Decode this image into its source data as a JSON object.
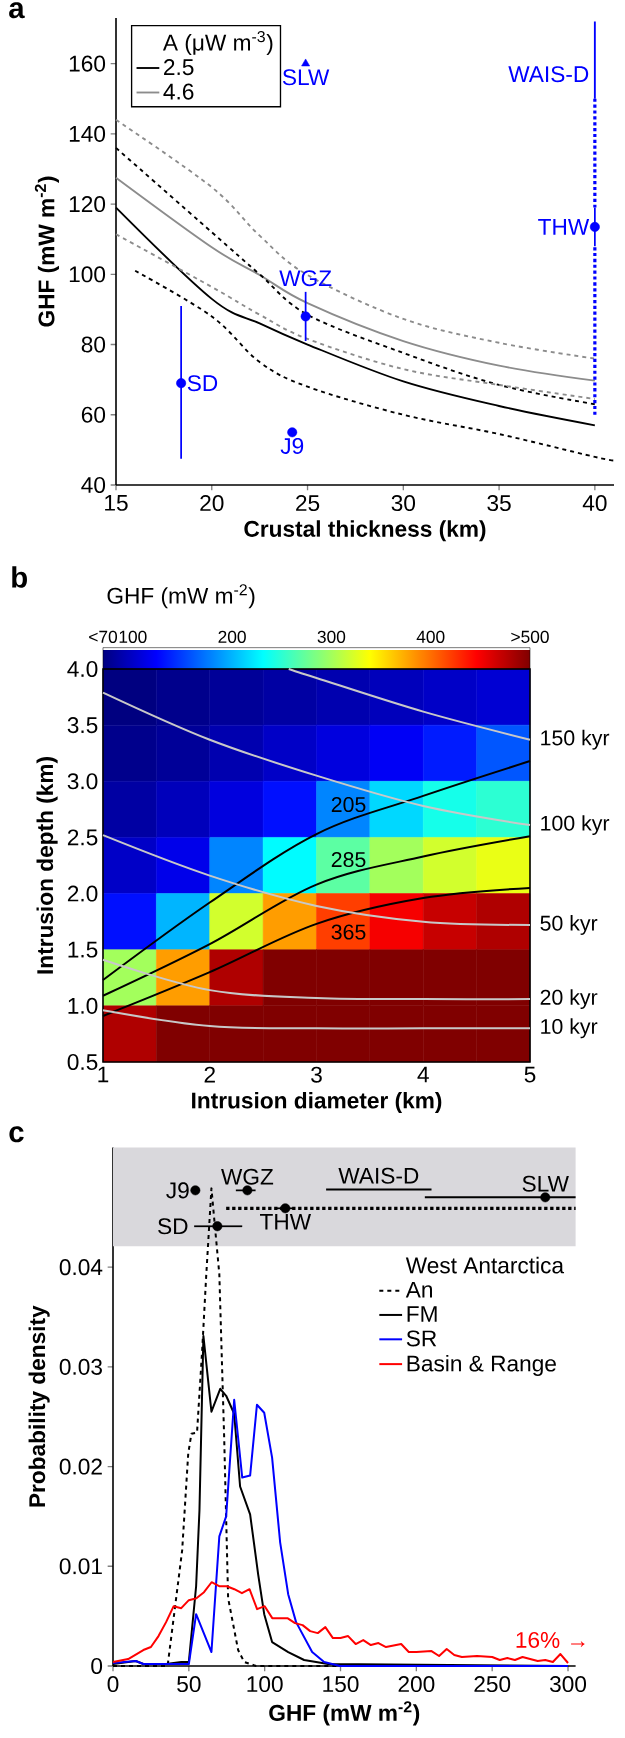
{
  "chart_data": [
    {
      "type": "line",
      "xlabel": "Crustal thickness (km)",
      "ylabel": "GHF (mW m$^{-2}$)",
      "legend_title": "A (μW m$^{-3}$)",
      "legend": "top left",
      "xlim": [
        15,
        41
      ],
      "ylim": [
        40,
        173
      ],
      "xticks": [
        15,
        20,
        25,
        30,
        35,
        40
      ],
      "yticks": [
        40,
        60,
        80,
        100,
        120,
        140,
        160
      ],
      "x": [
        15,
        20,
        22.5,
        25,
        30,
        35,
        40
      ],
      "series": [
        {
          "name": "2.5",
          "color": "#000000",
          "values": [
            119,
            93,
            86,
            80,
            69.5,
            62.5,
            57
          ]
        },
        {
          "name": "4.6",
          "color": "#8c8c8c",
          "values": [
            127.5,
            107.7,
            99.8,
            91.8,
            81,
            74,
            69.7
          ]
        },
        {
          "color": "#000000",
          "line_style": "dashed",
          "values": [
            136,
            112,
            100,
            88.5,
            77.6,
            68.5,
            63
          ]
        },
        {
          "color": "#000000",
          "line_style": "dashed",
          "x": [
            16,
            20,
            22.5,
            25,
            30,
            35,
            40,
            41
          ],
          "values": [
            101,
            88,
            75,
            68,
            60,
            54.5,
            48,
            47
          ]
        },
        {
          "color": "#8c8c8c",
          "line_style": "dashed",
          "values": [
            144,
            124.8,
            111,
            99.8,
            87.3,
            80.5,
            76
          ]
        },
        {
          "color": "#8c8c8c",
          "line_style": "dashed",
          "values": [
            111.4,
            96.4,
            88.5,
            81.6,
            73,
            68.5,
            64.5
          ]
        },
        {
          "color": "#0000ff",
          "line_style": "dotted",
          "x": [
            40,
            40
          ],
          "values": [
            60,
            108
          ]
        },
        {
          "color": "#0000ff",
          "line_style": "dotted",
          "x": [
            40,
            40
          ],
          "values": [
            119,
            150
          ]
        },
        {
          "color": "#0000ff",
          "x": [
            40,
            40
          ],
          "values": [
            150,
            172
          ]
        },
        {
          "type": "scatter",
          "color": "#0000ff",
          "marker": "triangle",
          "x": [
            24.9
          ],
          "values": [
            160
          ]
        },
        {
          "type": "scatter",
          "color": "#0000ff",
          "marker": "circle",
          "x": [
            18.4,
            24.2,
            24.9,
            40
          ],
          "values": [
            69,
            55,
            88,
            113.5
          ],
          "errors": [
            [
              47.5,
              91
            ],
            null,
            [
              81,
              95
            ],
            [
              108,
              119
            ]
          ]
        }
      ],
      "annotations": [
        "a",
        {
          "text": "SLW",
          "x": 24.9,
          "y": 160
        },
        {
          "text": "WAIS-D",
          "x": 40,
          "y": 157
        },
        {
          "text": "THW",
          "x": 40,
          "y": 113.5
        },
        {
          "text": "WGZ",
          "x": 24.9,
          "y": 95
        },
        {
          "text": "SD",
          "x": 18.4,
          "y": 69
        },
        {
          "text": "J9",
          "x": 24.2,
          "y": 55
        }
      ]
    },
    {
      "type": "heatmap",
      "clabel": "GHF (mW m$^{-2}$)",
      "clim": [
        70,
        500
      ],
      "cticks": [
        {
          "value": 70,
          "label": "<70"
        },
        100,
        200,
        300,
        400,
        {
          "value": 500,
          "label": ">500"
        }
      ],
      "categories": [
        null,
        null,
        null,
        null,
        null,
        null,
        null,
        null
      ],
      "y_categories": [
        null,
        null,
        null,
        null,
        null,
        null,
        null
      ],
      "cells": [
        [
          70,
          75,
          80,
          85,
          90,
          95,
          100,
          105
        ],
        [
          75,
          80,
          90,
          100,
          110,
          120,
          135,
          160
        ],
        [
          85,
          95,
          110,
          130,
          180,
          215,
          240,
          250
        ],
        [
          100,
          115,
          180,
          230,
          270,
          300,
          320,
          330
        ],
        [
          130,
          200,
          320,
          380,
          420,
          450,
          470,
          480
        ],
        [
          300,
          380,
          480,
          500,
          500,
          500,
          500,
          500
        ],
        [
          480,
          500,
          500,
          500,
          500,
          500,
          500,
          500
        ]
      ],
      "annotations": [
        "b"
      ]
    },
    {
      "type": "line",
      "xlabel": "Intrusion diameter (km)",
      "ylabel": "Intrusion depth (km)",
      "xlim": [
        1,
        5
      ],
      "ylim": [
        0.5,
        4
      ],
      "xticks": [
        1,
        2,
        3,
        4,
        5
      ],
      "yticks": [
        0.5,
        {
          "value": 1,
          "label": "1.0"
        },
        1.5,
        {
          "value": 2,
          "label": "2.0"
        },
        2.5,
        {
          "value": 3,
          "label": "3.0"
        },
        3.5,
        {
          "value": 4,
          "label": "4.0"
        }
      ],
      "series": [
        {
          "color": "#000000",
          "x": [
            1,
            2,
            3,
            4,
            5
          ],
          "values": [
            1.23,
            1.92,
            2.53,
            2.87,
            3.18
          ]
        },
        {
          "color": "#000000",
          "x": [
            1,
            2,
            3,
            4,
            5
          ],
          "values": [
            1.09,
            1.55,
            2.08,
            2.33,
            2.51
          ]
        },
        {
          "color": "#000000",
          "x": [
            1,
            2,
            3,
            4,
            5
          ],
          "values": [
            0.91,
            1.3,
            1.73,
            1.96,
            2.05
          ]
        },
        {
          "color": "#c8c8c8",
          "x": [
            1,
            2,
            3,
            4,
            5
          ],
          "values": [
            0.96,
            0.82,
            0.8,
            0.8,
            0.8
          ]
        },
        {
          "color": "#c8c8c8",
          "x": [
            1,
            2,
            3,
            4,
            5
          ],
          "values": [
            1.41,
            1.14,
            1.07,
            1.06,
            1.06
          ]
        },
        {
          "color": "#c8c8c8",
          "x": [
            1,
            2,
            3,
            4,
            5
          ],
          "values": [
            2.52,
            2.16,
            1.89,
            1.75,
            1.72
          ]
        },
        {
          "color": "#c8c8c8",
          "x": [
            1,
            2,
            3,
            4,
            5
          ],
          "values": [
            3.79,
            3.37,
            3.05,
            2.78,
            2.61
          ]
        },
        {
          "color": "#c8c8c8",
          "x": [
            2.74,
            3,
            4,
            5
          ],
          "values": [
            4.0,
            3.92,
            3.62,
            3.37
          ]
        }
      ],
      "annotations": [
        {
          "text": "205",
          "x": 3.3,
          "y": 2.64
        },
        {
          "text": "285",
          "x": 3.3,
          "y": 2.15
        },
        {
          "text": "365",
          "x": 3.3,
          "y": 1.81
        },
        {
          "text": "150 kyr",
          "x": 5,
          "y": 3.37
        },
        {
          "text": "100 kyr",
          "x": 5,
          "y": 2.61
        },
        {
          "text": "50 kyr",
          "x": 5,
          "y": 1.72
        },
        {
          "text": "20 kyr",
          "x": 5,
          "y": 1.06
        },
        {
          "text": "10 kyr",
          "x": 5,
          "y": 0.8
        }
      ]
    },
    {
      "type": "line",
      "xlabel": "GHF (mW m$^{-2}$)",
      "ylabel": "Probability density",
      "legend_title": "West Antarctica",
      "legend": "top right",
      "xlim": [
        0,
        305
      ],
      "ylim": [
        0,
        0.052
      ],
      "xticks": [
        0,
        50,
        100,
        150,
        200,
        250,
        300
      ],
      "yticks": [
        0,
        0.01,
        0.02,
        0.03,
        0.04
      ],
      "bands": [
        {
          "axis": "y",
          "from": 0.0421,
          "to": 0.052,
          "color": "#d9d8dc"
        }
      ],
      "series": [
        {
          "name": "An",
          "color": "#000000",
          "line_style": "dashed",
          "x": [
            0,
            36,
            45.6,
            49.6,
            51.7,
            55.4,
            58.8,
            61.4,
            64.9,
            66.7,
            70.1,
            73.3,
            75.9,
            82.5,
            86.5,
            94.4,
            300
          ],
          "values": [
            0,
            0,
            0.0116,
            0.0213,
            0.0233,
            0.0234,
            0.0317,
            0.039,
            0.0479,
            0.0449,
            0.0393,
            0.0229,
            0.0068,
            0.0016,
            0.0004,
            0,
            0
          ]
        },
        {
          "name": "FM",
          "color": "#000000",
          "x": [
            0,
            15,
            20,
            35,
            45,
            50,
            54.8,
            57,
            59.6,
            64.9,
            70.7,
            74.6,
            79.9,
            83.8,
            90.4,
            95.7,
            99.7,
            104.9,
            115.5,
            126,
            141.8,
            300
          ],
          "values": [
            0.0002,
            0.0005,
            0.0002,
            0.0002,
            0.0004,
            0.0004,
            0.008,
            0.0156,
            0.0331,
            0.0255,
            0.0278,
            0.0271,
            0.0253,
            0.018,
            0.0152,
            0.0092,
            0.0052,
            0.0024,
            0.0014,
            0.0006,
            0.0002,
            0
          ]
        },
        {
          "name": "SR",
          "color": "#0000ff",
          "x": [
            0,
            15,
            20,
            50,
            54.8,
            64.9,
            70.1,
            74.6,
            79.9,
            85.2,
            90.4,
            94.9,
            99.7,
            104.9,
            110.2,
            115.5,
            120.7,
            131.3,
            139.2,
            149.7,
            300
          ],
          "values": [
            0.0003,
            0.0005,
            0.0002,
            0.0002,
            0.0052,
            0.0014,
            0.013,
            0.015,
            0.0267,
            0.0189,
            0.0191,
            0.0262,
            0.0254,
            0.0209,
            0.0124,
            0.0072,
            0.0044,
            0.0014,
            0.0004,
            0,
            0
          ]
        },
        {
          "name": "Basin & Range",
          "color": "#ff0000",
          "x": [
            0,
            10,
            20,
            25,
            30,
            35,
            40,
            45,
            50,
            55,
            60,
            65,
            70,
            75,
            80,
            85,
            90,
            95,
            100,
            105,
            110,
            115,
            120,
            125,
            130,
            135,
            140,
            145,
            150,
            155,
            160,
            165,
            170,
            175,
            180,
            190,
            195,
            200,
            210,
            215,
            220,
            225,
            230,
            240,
            250,
            255,
            260,
            265,
            270,
            280,
            285,
            290,
            295,
            300
          ],
          "values": [
            0.0004,
            0.0007,
            0.0016,
            0.0019,
            0.003,
            0.0044,
            0.006,
            0.0058,
            0.0066,
            0.0068,
            0.0074,
            0.0084,
            0.008,
            0.008,
            0.0077,
            0.0073,
            0.0077,
            0.0057,
            0.006,
            0.0048,
            0.0048,
            0.0048,
            0.0043,
            0.0041,
            0.0035,
            0.0033,
            0.0039,
            0.0028,
            0.0028,
            0.003,
            0.0022,
            0.0026,
            0.0021,
            0.0023,
            0.0019,
            0.0022,
            0.0014,
            0.0014,
            0.0015,
            0.001,
            0.0017,
            0.0011,
            0.0009,
            0.001,
            0.0009,
            0.0006,
            0.0008,
            0.0006,
            0.0009,
            0.0005,
            0.0006,
            0.0004,
            0.0012,
            0.0003
          ]
        },
        {
          "color": "#000000",
          "x": [
            140.5,
            210
          ],
          "values": [
            0.0478,
            0.0478
          ]
        },
        {
          "color": "#000000",
          "x": [
            205.6,
            305
          ],
          "values": [
            0.047,
            0.047
          ]
        },
        {
          "color": "#000000",
          "line_style": "dotted",
          "x": [
            74.6,
            305
          ],
          "values": [
            0.0459,
            0.0459
          ]
        },
        {
          "type": "scatter",
          "color": "#000000",
          "marker": "circle",
          "x": [
            54.3,
            88.6,
            113.6,
            68.8,
            285
          ],
          "values": [
            0.0477,
            0.0477,
            0.0459,
            0.0441,
            0.047
          ],
          "xerrors": [
            null,
            [
              81,
              94
            ],
            [
              107.6,
              119.4
            ],
            [
              53.5,
              85.2
            ],
            null
          ]
        }
      ],
      "annotations": [
        "c",
        {
          "text": "J9",
          "x": 54.3,
          "y": 0.0477
        },
        {
          "text": "SD",
          "x": 53.5,
          "y": 0.0441
        },
        {
          "text": "WGZ",
          "x": 88.6,
          "y": 0.0477
        },
        {
          "text": "WAIS-D",
          "x": 175.25,
          "y": 0.0478
        },
        {
          "text": "SLW",
          "x": 285,
          "y": 0.047
        },
        {
          "text": "THW",
          "x": 113.6,
          "y": 0.0459
        },
        "16% →"
      ]
    }
  ]
}
